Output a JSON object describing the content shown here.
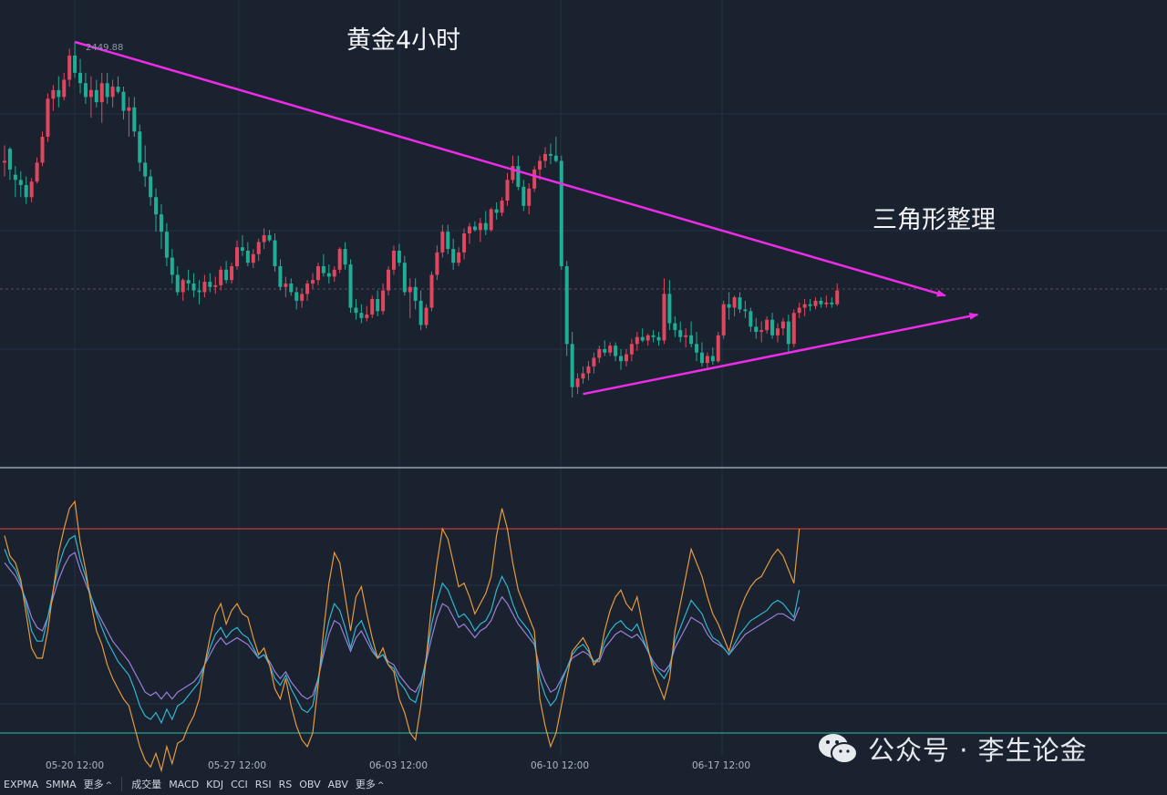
{
  "title": "黄金4小时",
  "annotation": "三角形整理",
  "high_label": "2449.88",
  "watermark": "公众号 · 李生论金",
  "colors": {
    "background": "#1a2230",
    "up": "#e0475e",
    "down": "#1fae95",
    "trendline": "#ee2ce8",
    "upper_band": "#c23a3a",
    "lower_band": "#25a38c",
    "line1": "#e69a3c",
    "line2": "#2fb6cf",
    "line3": "#9a7fd8"
  },
  "toolbar": {
    "main": [
      "EXPMA",
      "SMMA"
    ],
    "main_more": "更多",
    "sub": [
      "成交量",
      "MACD",
      "KDJ",
      "CCI",
      "RSI",
      "RS",
      "OBV",
      "ABV"
    ],
    "sub_more": "更多"
  },
  "chart_data": {
    "type": "candlestick",
    "x_ticks": [
      "05-20 12:00",
      "05-27 12:00",
      "06-03 12:00",
      "06-10 12:00",
      "06-17 12:00"
    ],
    "candles": [
      [
        2380,
        2390,
        2372,
        2381
      ],
      [
        2388,
        2389,
        2370,
        2376
      ],
      [
        2373,
        2378,
        2360,
        2370
      ],
      [
        2370,
        2375,
        2360,
        2367
      ],
      [
        2367,
        2372,
        2356,
        2360
      ],
      [
        2360,
        2371,
        2357,
        2369
      ],
      [
        2369,
        2383,
        2368,
        2380
      ],
      [
        2380,
        2398,
        2378,
        2395
      ],
      [
        2395,
        2420,
        2392,
        2417
      ],
      [
        2417,
        2425,
        2410,
        2422
      ],
      [
        2422,
        2430,
        2412,
        2418
      ],
      [
        2418,
        2432,
        2416,
        2428
      ],
      [
        2428,
        2446,
        2424,
        2442
      ],
      [
        2442,
        2449.88,
        2429,
        2432
      ],
      [
        2432,
        2440,
        2420,
        2426
      ],
      [
        2426,
        2432,
        2414,
        2418
      ],
      [
        2418,
        2430,
        2406,
        2422
      ],
      [
        2422,
        2428,
        2412,
        2415
      ],
      [
        2415,
        2432,
        2403,
        2426
      ],
      [
        2426,
        2432,
        2414,
        2418
      ],
      [
        2418,
        2428,
        2412,
        2424
      ],
      [
        2424,
        2430,
        2420,
        2421
      ],
      [
        2421,
        2424,
        2405,
        2410
      ],
      [
        2410,
        2418,
        2395,
        2412
      ],
      [
        2412,
        2418,
        2395,
        2398
      ],
      [
        2398,
        2402,
        2375,
        2380
      ],
      [
        2380,
        2390,
        2366,
        2372
      ],
      [
        2372,
        2376,
        2355,
        2360
      ],
      [
        2360,
        2365,
        2340,
        2350
      ],
      [
        2350,
        2356,
        2330,
        2340
      ],
      [
        2340,
        2345,
        2320,
        2325
      ],
      [
        2325,
        2330,
        2310,
        2315
      ],
      [
        2315,
        2320,
        2303,
        2305
      ],
      [
        2305,
        2313,
        2300,
        2312
      ],
      [
        2312,
        2318,
        2306,
        2310
      ],
      [
        2310,
        2316,
        2302,
        2306
      ],
      [
        2306,
        2312,
        2298,
        2305
      ],
      [
        2305,
        2315,
        2302,
        2311
      ],
      [
        2311,
        2316,
        2305,
        2308
      ],
      [
        2308,
        2314,
        2304,
        2309
      ],
      [
        2309,
        2320,
        2306,
        2318
      ],
      [
        2318,
        2323,
        2310,
        2312
      ],
      [
        2312,
        2322,
        2310,
        2320
      ],
      [
        2320,
        2335,
        2318,
        2331
      ],
      [
        2331,
        2338,
        2326,
        2329
      ],
      [
        2329,
        2334,
        2320,
        2322
      ],
      [
        2322,
        2330,
        2319,
        2327
      ],
      [
        2327,
        2336,
        2323,
        2334
      ],
      [
        2334,
        2342,
        2330,
        2338
      ],
      [
        2338,
        2341,
        2334,
        2335
      ],
      [
        2335,
        2339,
        2317,
        2320
      ],
      [
        2320,
        2324,
        2306,
        2308
      ],
      [
        2308,
        2314,
        2302,
        2310
      ],
      [
        2310,
        2313,
        2303,
        2305
      ],
      [
        2305,
        2308,
        2295,
        2300
      ],
      [
        2300,
        2307,
        2296,
        2304
      ],
      [
        2304,
        2312,
        2300,
        2310
      ],
      [
        2310,
        2316,
        2307,
        2312
      ],
      [
        2312,
        2322,
        2309,
        2320
      ],
      [
        2320,
        2327,
        2314,
        2316
      ],
      [
        2316,
        2321,
        2310,
        2314
      ],
      [
        2314,
        2320,
        2311,
        2318
      ],
      [
        2318,
        2331,
        2316,
        2330
      ],
      [
        2330,
        2334,
        2318,
        2321
      ],
      [
        2321,
        2324,
        2293,
        2296
      ],
      [
        2296,
        2301,
        2289,
        2293
      ],
      [
        2293,
        2298,
        2287,
        2290
      ],
      [
        2290,
        2297,
        2288,
        2292
      ],
      [
        2292,
        2303,
        2290,
        2301
      ],
      [
        2301,
        2306,
        2291,
        2294
      ],
      [
        2294,
        2310,
        2292,
        2306
      ],
      [
        2306,
        2320,
        2303,
        2318
      ],
      [
        2318,
        2332,
        2315,
        2329
      ],
      [
        2329,
        2333,
        2320,
        2322
      ],
      [
        2322,
        2326,
        2303,
        2305
      ],
      [
        2305,
        2313,
        2290,
        2308
      ],
      [
        2308,
        2313,
        2295,
        2300
      ],
      [
        2300,
        2306,
        2283,
        2286
      ],
      [
        2286,
        2298,
        2284,
        2296
      ],
      [
        2296,
        2317,
        2294,
        2315
      ],
      [
        2315,
        2332,
        2312,
        2328
      ],
      [
        2328,
        2344,
        2325,
        2340
      ],
      [
        2340,
        2344,
        2327,
        2330
      ],
      [
        2330,
        2336,
        2318,
        2322
      ],
      [
        2322,
        2331,
        2320,
        2328
      ],
      [
        2328,
        2342,
        2324,
        2339
      ],
      [
        2339,
        2345,
        2333,
        2343
      ],
      [
        2343,
        2346,
        2340,
        2341
      ],
      [
        2341,
        2348,
        2334,
        2345
      ],
      [
        2345,
        2352,
        2338,
        2341
      ],
      [
        2341,
        2354,
        2340,
        2353
      ],
      [
        2353,
        2357,
        2347,
        2351
      ],
      [
        2351,
        2360,
        2349,
        2358
      ],
      [
        2358,
        2374,
        2355,
        2370
      ],
      [
        2370,
        2384,
        2368,
        2378
      ],
      [
        2378,
        2384,
        2364,
        2366
      ],
      [
        2366,
        2370,
        2352,
        2355
      ],
      [
        2355,
        2368,
        2350,
        2365
      ],
      [
        2365,
        2378,
        2363,
        2376
      ],
      [
        2376,
        2384,
        2370,
        2381
      ],
      [
        2381,
        2389,
        2377,
        2385
      ],
      [
        2385,
        2391,
        2379,
        2384
      ],
      [
        2384,
        2395,
        2380,
        2381
      ],
      [
        2381,
        2384,
        2318,
        2320
      ],
      [
        2320,
        2323,
        2268,
        2275
      ],
      [
        2275,
        2282,
        2244,
        2250
      ],
      [
        2250,
        2258,
        2246,
        2255
      ],
      [
        2255,
        2262,
        2252,
        2258
      ],
      [
        2258,
        2265,
        2254,
        2262
      ],
      [
        2262,
        2270,
        2258,
        2267
      ],
      [
        2267,
        2274,
        2264,
        2272
      ],
      [
        2272,
        2277,
        2268,
        2270
      ],
      [
        2270,
        2276,
        2268,
        2274
      ],
      [
        2274,
        2276,
        2265,
        2268
      ],
      [
        2268,
        2272,
        2260,
        2265
      ],
      [
        2265,
        2272,
        2262,
        2269
      ],
      [
        2269,
        2278,
        2265,
        2275
      ],
      [
        2275,
        2282,
        2271,
        2279
      ],
      [
        2279,
        2284,
        2276,
        2277
      ],
      [
        2277,
        2281,
        2274,
        2280
      ],
      [
        2280,
        2283,
        2276,
        2279
      ],
      [
        2279,
        2282,
        2274,
        2277
      ],
      [
        2277,
        2313,
        2275,
        2304
      ],
      [
        2304,
        2312,
        2283,
        2287
      ],
      [
        2287,
        2291,
        2279,
        2283
      ],
      [
        2283,
        2288,
        2276,
        2279
      ],
      [
        2279,
        2284,
        2273,
        2280
      ],
      [
        2280,
        2288,
        2273,
        2275
      ],
      [
        2275,
        2282,
        2265,
        2270
      ],
      [
        2270,
        2276,
        2262,
        2264
      ],
      [
        2264,
        2270,
        2261,
        2268
      ],
      [
        2268,
        2273,
        2263,
        2265
      ],
      [
        2265,
        2282,
        2264,
        2280
      ],
      [
        2280,
        2300,
        2278,
        2298
      ],
      [
        2298,
        2305,
        2289,
        2296
      ],
      [
        2296,
        2303,
        2291,
        2302
      ],
      [
        2302,
        2305,
        2293,
        2295
      ],
      [
        2295,
        2300,
        2290,
        2294
      ],
      [
        2294,
        2296,
        2282,
        2285
      ],
      [
        2285,
        2290,
        2278,
        2282
      ],
      [
        2282,
        2288,
        2276,
        2283
      ],
      [
        2283,
        2291,
        2281,
        2289
      ],
      [
        2289,
        2293,
        2278,
        2280
      ],
      [
        2280,
        2287,
        2276,
        2284
      ],
      [
        2284,
        2290,
        2280,
        2288
      ],
      [
        2288,
        2292,
        2270,
        2275
      ],
      [
        2275,
        2295,
        2273,
        2293
      ],
      [
        2293,
        2299,
        2290,
        2296
      ],
      [
        2296,
        2301,
        2291,
        2298
      ],
      [
        2298,
        2301,
        2294,
        2297
      ],
      [
        2297,
        2302,
        2295,
        2300
      ],
      [
        2300,
        2302,
        2296,
        2298
      ],
      [
        2298,
        2303,
        2296,
        2299
      ],
      [
        2299,
        2302,
        2296,
        2298
      ],
      [
        2298,
        2310,
        2297,
        2306
      ]
    ],
    "trendlines": [
      {
        "name": "upper",
        "from": [
          13,
          2449.88
        ],
        "to": [
          174,
          2303
        ]
      },
      {
        "name": "lower",
        "from": [
          107,
          2246
        ],
        "to": [
          180,
          2292
        ]
      }
    ],
    "indicator": {
      "reference_lines": {
        "upper": 80,
        "lower": 20
      },
      "series": [
        {
          "values": [
            78,
            72,
            70,
            65,
            55,
            45,
            42,
            42,
            50,
            62,
            73,
            80,
            86,
            88,
            76,
            68,
            58,
            50,
            46,
            40,
            36,
            33,
            30,
            28,
            22,
            16,
            12,
            10,
            14,
            9,
            16,
            11,
            17,
            18,
            22,
            25,
            30,
            40,
            48,
            55,
            58,
            52,
            56,
            58,
            55,
            54,
            48,
            43,
            45,
            40,
            33,
            30,
            36,
            28,
            22,
            18,
            16,
            20,
            34,
            50,
            64,
            73,
            70,
            60,
            50,
            60,
            63,
            55,
            48,
            42,
            45,
            40,
            38,
            30,
            26,
            20,
            18,
            28,
            42,
            58,
            70,
            80,
            77,
            70,
            63,
            64,
            60,
            55,
            58,
            61,
            66,
            78,
            86,
            80,
            70,
            62,
            58,
            54,
            50,
            30,
            22,
            16,
            20,
            28,
            36,
            44,
            46,
            48,
            45,
            40,
            42,
            50,
            56,
            60,
            62,
            58,
            56,
            60,
            52,
            45,
            38,
            34,
            30,
            36,
            50,
            58,
            66,
            74,
            70,
            66,
            60,
            55,
            52,
            48,
            44,
            50,
            56,
            60,
            63,
            65,
            66,
            69,
            72,
            74,
            72,
            68,
            64,
            80
          ]
        },
        {
          "values": [
            74,
            70,
            68,
            64,
            58,
            50,
            47,
            47,
            54,
            62,
            69,
            74,
            77,
            78,
            71,
            66,
            60,
            55,
            51,
            47,
            44,
            41,
            39,
            37,
            33,
            28,
            25,
            24,
            26,
            23,
            27,
            24,
            28,
            29,
            31,
            33,
            35,
            40,
            45,
            49,
            51,
            48,
            50,
            51,
            49,
            48,
            45,
            42,
            43,
            40,
            36,
            34,
            37,
            33,
            30,
            27,
            26,
            28,
            36,
            45,
            53,
            58,
            56,
            51,
            45,
            51,
            53,
            49,
            45,
            42,
            43,
            40,
            39,
            35,
            33,
            30,
            29,
            34,
            42,
            52,
            59,
            64,
            62,
            58,
            54,
            55,
            53,
            50,
            52,
            53,
            56,
            62,
            66,
            63,
            58,
            54,
            52,
            50,
            47,
            36,
            31,
            28,
            30,
            35,
            39,
            43,
            45,
            46,
            44,
            41,
            42,
            47,
            50,
            52,
            53,
            51,
            50,
            52,
            48,
            44,
            40,
            38,
            36,
            39,
            47,
            51,
            55,
            59,
            57,
            55,
            51,
            48,
            47,
            45,
            43,
            46,
            49,
            51,
            53,
            54,
            55,
            56,
            58,
            59,
            58,
            56,
            54,
            62
          ]
        },
        {
          "values": [
            70,
            68,
            66,
            63,
            59,
            54,
            51,
            50,
            54,
            60,
            65,
            69,
            72,
            73,
            68,
            64,
            60,
            56,
            53,
            50,
            47,
            45,
            43,
            41,
            38,
            35,
            32,
            31,
            32,
            30,
            32,
            30,
            32,
            33,
            34,
            35,
            37,
            40,
            43,
            46,
            48,
            46,
            47,
            48,
            47,
            46,
            44,
            42,
            43,
            41,
            38,
            36,
            38,
            35,
            33,
            31,
            30,
            31,
            36,
            43,
            49,
            53,
            52,
            48,
            44,
            48,
            50,
            47,
            44,
            42,
            43,
            41,
            40,
            37,
            35,
            33,
            32,
            35,
            41,
            48,
            54,
            58,
            57,
            54,
            51,
            52,
            50,
            48,
            50,
            51,
            53,
            57,
            60,
            58,
            55,
            52,
            50,
            48,
            46,
            39,
            35,
            32,
            33,
            36,
            39,
            42,
            43,
            44,
            43,
            41,
            41,
            45,
            47,
            49,
            50,
            49,
            48,
            49,
            47,
            44,
            41,
            39,
            38,
            40,
            45,
            48,
            51,
            54,
            53,
            52,
            49,
            47,
            46,
            45,
            43,
            45,
            47,
            49,
            50,
            51,
            52,
            53,
            54,
            55,
            55,
            54,
            53,
            57
          ]
        }
      ]
    }
  }
}
